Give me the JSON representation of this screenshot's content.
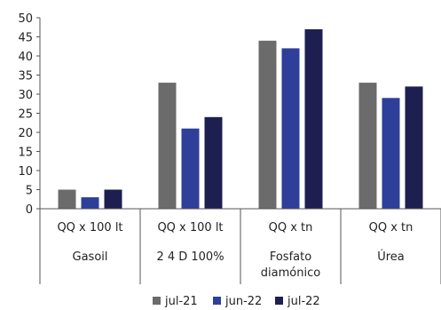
{
  "chart_data": {
    "type": "bar",
    "categories": [
      {
        "unit": "QQ x 100 lt",
        "label": [
          "Gasoil"
        ]
      },
      {
        "unit": "QQ x 100 lt",
        "label": [
          "2 4 D 100%"
        ]
      },
      {
        "unit": "QQ x tn",
        "label": [
          "Fosfato",
          "diamónico"
        ]
      },
      {
        "unit": "QQ x tn",
        "label": [
          "Úrea"
        ]
      }
    ],
    "series": [
      {
        "name": "jul-21",
        "color": "#6b6b6b",
        "values": [
          5,
          33,
          44,
          33
        ]
      },
      {
        "name": "jun-22",
        "color": "#2e3f9a",
        "values": [
          3,
          21,
          42,
          29
        ]
      },
      {
        "name": "jul-22",
        "color": "#1c1f4f",
        "values": [
          5,
          24,
          47,
          32
        ]
      }
    ],
    "ylim": [
      0,
      50
    ],
    "yticks": [
      0,
      5,
      10,
      15,
      20,
      25,
      30,
      35,
      40,
      45,
      50
    ],
    "grid": false,
    "legend_position": "bottom"
  }
}
